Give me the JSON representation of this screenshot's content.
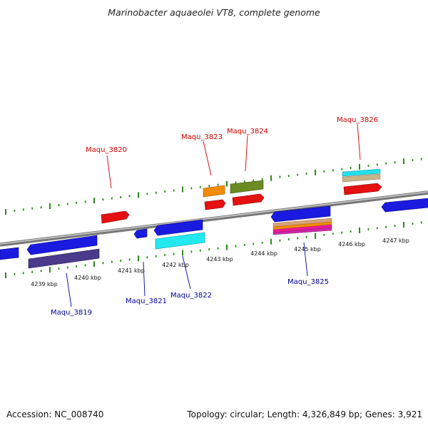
{
  "title": "Marinobacter aquaeolei VT8, complete genome",
  "footer": {
    "accession": "Accession: NC_008740",
    "stats": "Topology: circular; Length: 4,326,849 bp; Genes: 3,921"
  },
  "colors": {
    "label_forward": "#cc0000",
    "label_reverse": "#000099",
    "tick": "#2a8a1a",
    "backbone": "#8c8c8c"
  },
  "tick_labels": [
    "4239 kbp",
    "4240 kbp",
    "4241 kbp",
    "4242 kbp",
    "4243 kbp",
    "4244 kbp",
    "4245 kbp",
    "4246 kbp",
    "4247 kbp"
  ],
  "gene_labels": [
    {
      "name": "Maqu_3819",
      "strand": "reverse"
    },
    {
      "name": "Maqu_3820",
      "strand": "forward"
    },
    {
      "name": "Maqu_3821",
      "strand": "reverse"
    },
    {
      "name": "Maqu_3822",
      "strand": "reverse"
    },
    {
      "name": "Maqu_3823",
      "strand": "forward"
    },
    {
      "name": "Maqu_3824",
      "strand": "forward"
    },
    {
      "name": "Maqu_3825",
      "strand": "reverse"
    },
    {
      "name": "Maqu_3826",
      "strand": "forward"
    }
  ]
}
